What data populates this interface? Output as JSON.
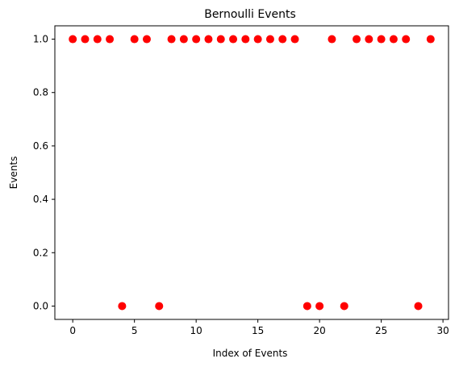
{
  "chart_data": {
    "type": "scatter",
    "title": "Bernoulli Events",
    "xlabel": "Index of Events",
    "ylabel": "Events",
    "xlim": [
      -1.45,
      30.45
    ],
    "ylim": [
      -0.05,
      1.05
    ],
    "xticks": [
      0,
      5,
      10,
      15,
      20,
      25,
      30
    ],
    "xtick_labels": [
      "0",
      "5",
      "10",
      "15",
      "20",
      "25",
      "30"
    ],
    "yticks": [
      0.0,
      0.2,
      0.4,
      0.6,
      0.8,
      1.0
    ],
    "ytick_labels": [
      "0.0",
      "0.2",
      "0.4",
      "0.6",
      "0.8",
      "1.0"
    ],
    "grid": false,
    "marker_color": "#ff0000",
    "x": [
      0,
      1,
      2,
      3,
      4,
      5,
      6,
      7,
      8,
      9,
      10,
      11,
      12,
      13,
      14,
      15,
      16,
      17,
      18,
      19,
      20,
      21,
      22,
      23,
      24,
      25,
      26,
      27,
      28,
      29
    ],
    "y": [
      1,
      1,
      1,
      1,
      0,
      1,
      1,
      0,
      1,
      1,
      1,
      1,
      1,
      1,
      1,
      1,
      1,
      1,
      1,
      0,
      0,
      1,
      0,
      1,
      1,
      1,
      1,
      1,
      0,
      1
    ]
  }
}
